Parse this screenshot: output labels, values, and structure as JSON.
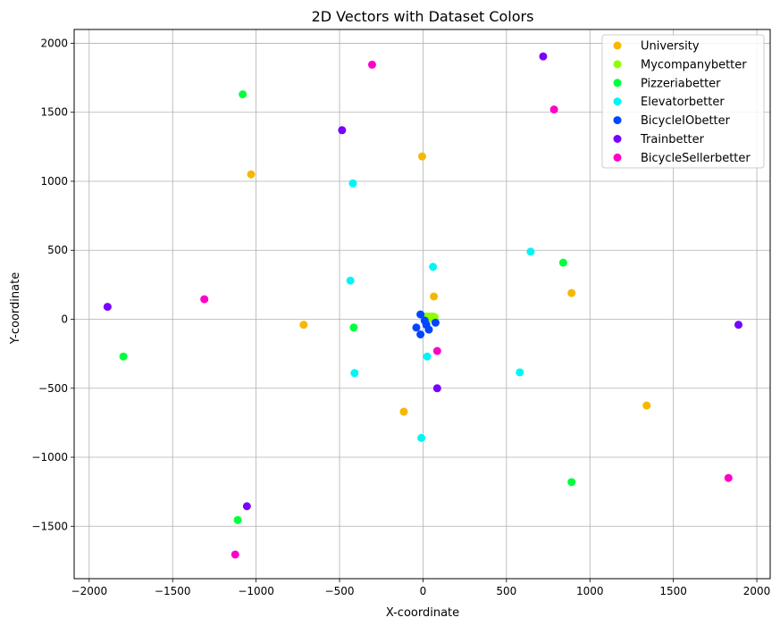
{
  "chart_data": {
    "type": "scatter",
    "title": "2D Vectors with Dataset Colors",
    "xlabel": "X-coordinate",
    "ylabel": "Y-coordinate",
    "xlim": [
      -2090,
      2080
    ],
    "ylim": [
      -1880,
      2100
    ],
    "xticks": [
      -2000,
      -1500,
      -1000,
      -500,
      0,
      500,
      1000,
      1500,
      2000
    ],
    "yticks": [
      -1500,
      -1000,
      -500,
      0,
      500,
      1000,
      1500,
      2000
    ],
    "xtick_labels": [
      "−2000",
      "−1500",
      "−1000",
      "−500",
      "0",
      "500",
      "1000",
      "1500",
      "2000"
    ],
    "ytick_labels": [
      "−1500",
      "−1000",
      "−500",
      "0",
      "500",
      "1000",
      "1500",
      "2000"
    ],
    "grid": true,
    "legend_position": "top-right",
    "series": [
      {
        "name": "University",
        "color": "#f5b800",
        "points": [
          [
            -1030,
            1050
          ],
          [
            -5,
            1180
          ],
          [
            -715,
            -40
          ],
          [
            65,
            165
          ],
          [
            890,
            190
          ],
          [
            -115,
            -670
          ],
          [
            1340,
            -625
          ]
        ]
      },
      {
        "name": "Mycompanybetter",
        "color": "#8cff00",
        "points": [
          [
            20,
            20
          ],
          [
            40,
            20
          ],
          [
            60,
            20
          ],
          [
            30,
            10
          ],
          [
            50,
            5
          ],
          [
            70,
            15
          ]
        ]
      },
      {
        "name": "Pizzeriabetter",
        "color": "#00ff3c",
        "points": [
          [
            -1080,
            1630
          ],
          [
            840,
            410
          ],
          [
            -415,
            -60
          ],
          [
            -1795,
            -270
          ],
          [
            890,
            -1180
          ],
          [
            -1110,
            -1455
          ]
        ]
      },
      {
        "name": "Elevatorbetter",
        "color": "#00f5f5",
        "points": [
          [
            -420,
            985
          ],
          [
            645,
            490
          ],
          [
            60,
            380
          ],
          [
            -435,
            280
          ],
          [
            -410,
            -390
          ],
          [
            25,
            -270
          ],
          [
            580,
            -385
          ],
          [
            -10,
            -860
          ]
        ]
      },
      {
        "name": "BicycleIObetter",
        "color": "#0046ff",
        "points": [
          [
            -15,
            35
          ],
          [
            75,
            -25
          ],
          [
            -40,
            -60
          ],
          [
            20,
            -40
          ],
          [
            35,
            -75
          ],
          [
            -15,
            -110
          ],
          [
            10,
            -10
          ]
        ]
      },
      {
        "name": "Trainbetter",
        "color": "#7800ff",
        "points": [
          [
            720,
            1905
          ],
          [
            -485,
            1370
          ],
          [
            -1890,
            90
          ],
          [
            1890,
            -40
          ],
          [
            85,
            -500
          ],
          [
            -1055,
            -1355
          ]
        ]
      },
      {
        "name": "BicycleSellerbetter",
        "color": "#ff00c8",
        "points": [
          [
            -305,
            1845
          ],
          [
            785,
            1520
          ],
          [
            -1310,
            145
          ],
          [
            85,
            -230
          ],
          [
            1830,
            -1150
          ],
          [
            -1125,
            -1705
          ]
        ]
      }
    ]
  }
}
